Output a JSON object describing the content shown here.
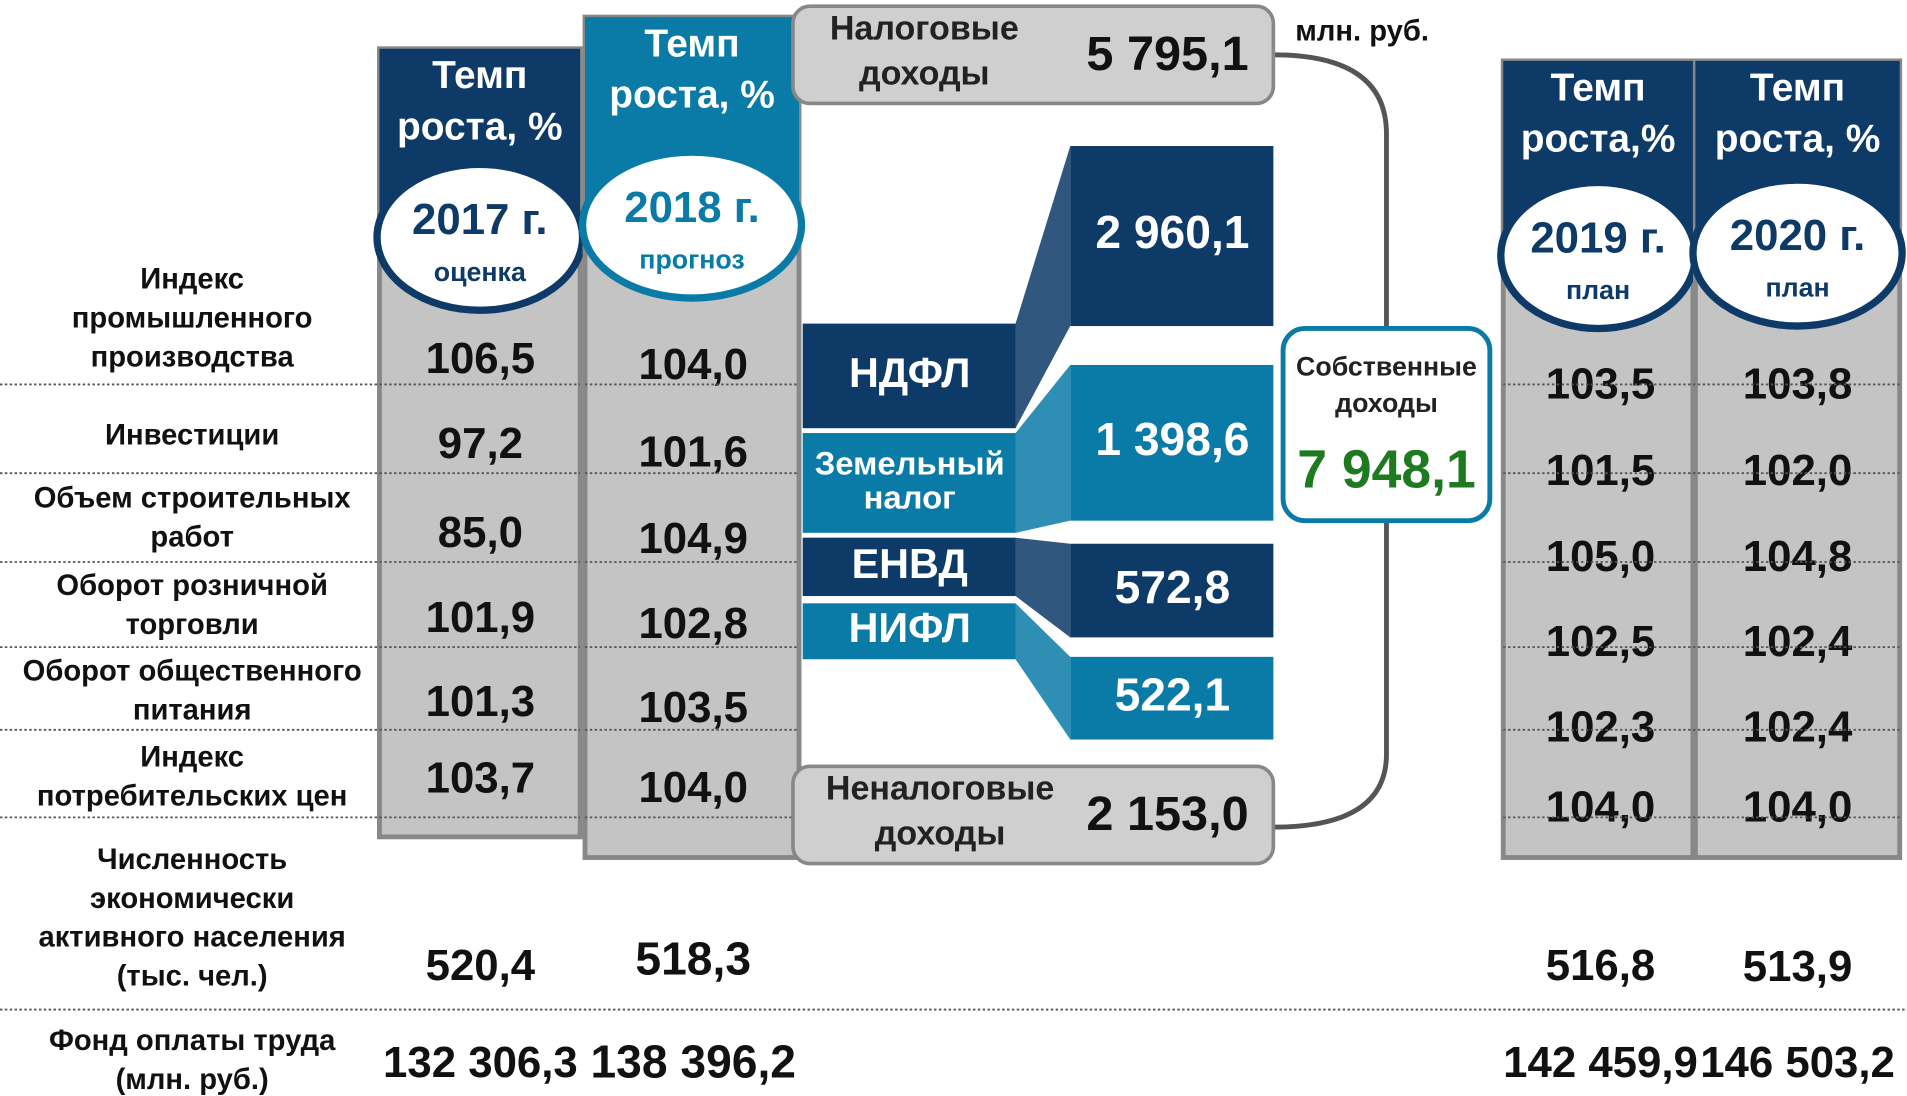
{
  "columns": [
    {
      "header": [
        "Темп",
        "роста, %"
      ],
      "year": "2017 г.",
      "note": "оценка"
    },
    {
      "header": [
        "Темп",
        "роста, %"
      ],
      "year": "2018 г.",
      "note": "прогноз"
    },
    {
      "header": [
        "Темп",
        "роста,%"
      ],
      "year": "2019 г.",
      "note": "план"
    },
    {
      "header": [
        "Темп",
        "роста, %"
      ],
      "year": "2020 г.",
      "note": "план"
    }
  ],
  "rows": [
    {
      "label": [
        "Индекс",
        "промышленного",
        "производства"
      ],
      "values": [
        "106,5",
        "104,0",
        "103,5",
        "103,8"
      ]
    },
    {
      "label": [
        "Инвестиции"
      ],
      "values": [
        "97,2",
        "101,6",
        "101,5",
        "102,0"
      ]
    },
    {
      "label": [
        "Объем строительных",
        "работ"
      ],
      "values": [
        "85,0",
        "104,9",
        "105,0",
        "104,8"
      ]
    },
    {
      "label": [
        "Оборот розничной",
        "торговли"
      ],
      "values": [
        "101,9",
        "102,8",
        "102,5",
        "102,4"
      ]
    },
    {
      "label": [
        "Оборот общественного",
        "питания"
      ],
      "values": [
        "101,3",
        "103,5",
        "102,3",
        "102,4"
      ]
    },
    {
      "label": [
        "Индекс",
        "потребительских цен"
      ],
      "values": [
        "103,7",
        "104,0",
        "104,0",
        "104,0"
      ]
    },
    {
      "label": [
        "Численность",
        "экономически",
        "активного населения",
        "(тыс. чел.)"
      ],
      "values": [
        "520,4",
        "518,3",
        "516,8",
        "513,9"
      ]
    },
    {
      "label": [
        "Фонд оплаты труда",
        "(млн. руб.)"
      ],
      "values": [
        "132 306,3",
        "138 396,2",
        "142 459,9",
        "146 503,2"
      ]
    }
  ],
  "unit": "млн. руб.",
  "tax": {
    "label": [
      "Налоговые",
      "доходы"
    ],
    "value": "5 795,1"
  },
  "taxes": [
    {
      "name": [
        "НДФЛ"
      ],
      "value": "2 960,1"
    },
    {
      "name": [
        "Земельный",
        "налог"
      ],
      "value": "1 398,6"
    },
    {
      "name": [
        "ЕНВД"
      ],
      "value": "572,8"
    },
    {
      "name": [
        "НИФЛ"
      ],
      "value": "522,1"
    }
  ],
  "nontax": {
    "label": [
      "Неналоговые",
      "доходы"
    ],
    "value": "2 153,0"
  },
  "own": {
    "label": [
      "Собственные",
      "доходы"
    ],
    "value": "7 948,1"
  }
}
